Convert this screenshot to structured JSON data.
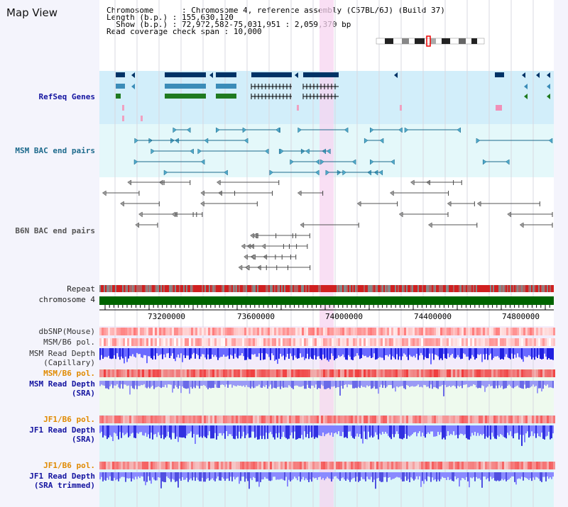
{
  "title": "Map View",
  "info": {
    "chromosome_key": "Chromosome",
    "chromosome_val": "Chromosome 4, reference assembly (C57BL/6J) (Build 37)",
    "length_key": "Length (b.p.)",
    "length_val": "155,630,120",
    "show_key": "Show (b.p.)",
    "show_val": "72,972,582-75,031,951 : 2,059,370 bp",
    "coverage_key": "Read coverage check span",
    "coverage_val": "10,000"
  },
  "tracks": {
    "refseq": "RefSeq Genes",
    "msm_bac": "MSM BAC end pairs",
    "b6n_bac": "B6N BAC end pairs",
    "repeat": "Repeat",
    "chromosome": "chromosome 4",
    "dbsnp": "dbSNP(Mouse)",
    "msm_b6_pol_1": "MSM/B6 pol.",
    "msm_depth_cap_1": "MSM Read Depth",
    "msm_depth_cap_2": "(Capillary)",
    "msm_b6_pol_2": "MSM/B6 pol.",
    "msm_depth_sra_1": "MSM Read Depth",
    "msm_depth_sra_2": "(SRA)",
    "jf1_b6_pol_1": "JF1/B6 pol.",
    "jf1_depth_sra_1": "JF1 Read Depth",
    "jf1_depth_sra_2": "(SRA)",
    "jf1_b6_pol_2": "JF1/B6 pol.",
    "jf1_depth_trim_1": "JF1 Read Depth",
    "jf1_depth_trim_2": "(SRA trimmed)"
  },
  "axis": {
    "ticks": [
      "73200000",
      "73600000",
      "74000000",
      "74400000",
      "74800000"
    ]
  },
  "colors": {
    "highlight": "#f7d4f0",
    "refseq_bg": "#d2eefa",
    "msm_bg": "#e4f8fa",
    "chromosome": "#006400",
    "depth_blue": "#2a2ae0",
    "depth_light": "#8080ff",
    "snp_red": "#f05050"
  }
}
